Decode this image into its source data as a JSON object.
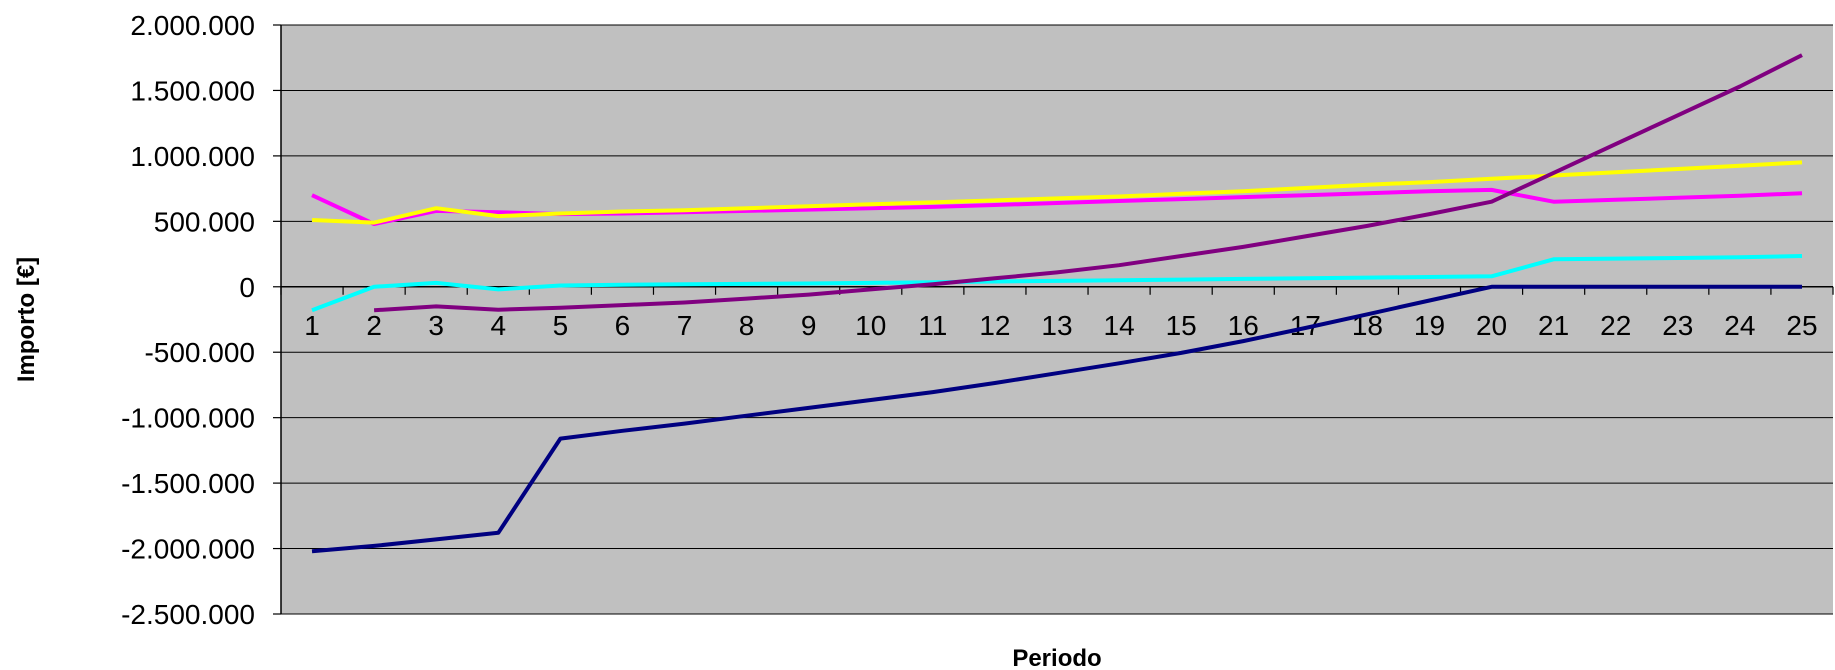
{
  "chart_data": {
    "type": "line",
    "xlabel": "Periodo",
    "ylabel": "Importo [€]",
    "x": [
      1,
      2,
      3,
      4,
      5,
      6,
      7,
      8,
      9,
      10,
      11,
      12,
      13,
      14,
      15,
      16,
      17,
      18,
      19,
      20,
      21,
      22,
      23,
      24,
      25
    ],
    "ylim": [
      -2500000,
      2000000
    ],
    "yticks": [
      2000000,
      1500000,
      1000000,
      500000,
      0,
      -500000,
      -1000000,
      -1500000,
      -2000000,
      -2500000
    ],
    "ytick_labels": [
      "2.000.000",
      "1.500.000",
      "1.000.000",
      "500.000",
      "0",
      "-500.000",
      "-1.000.000",
      "-1.500.000",
      "-2.000.000",
      "-2.500.000"
    ],
    "grid": true,
    "plot_background": "#c0c0c0",
    "series": [
      {
        "color": "#000080",
        "values": [
          -2020000,
          -1980000,
          -1930000,
          -1880000,
          -1160000,
          -1100000,
          -1045000,
          -985000,
          -925000,
          -865000,
          -805000,
          -735000,
          -660000,
          -585000,
          -505000,
          -415000,
          -315000,
          -210000,
          -105000,
          0,
          0,
          0,
          0,
          0,
          0
        ]
      },
      {
        "color": "#ff00ff",
        "values": [
          700000,
          480000,
          580000,
          570000,
          555000,
          560000,
          570000,
          580000,
          590000,
          600000,
          610000,
          625000,
          640000,
          655000,
          670000,
          685000,
          700000,
          715000,
          730000,
          740000,
          650000,
          665000,
          680000,
          695000,
          715000
        ]
      },
      {
        "color": "#ffff00",
        "values": [
          510000,
          490000,
          600000,
          540000,
          560000,
          575000,
          585000,
          600000,
          615000,
          630000,
          645000,
          660000,
          675000,
          690000,
          710000,
          730000,
          755000,
          780000,
          800000,
          825000,
          850000,
          875000,
          900000,
          925000,
          950000
        ]
      },
      {
        "color": "#00ffff",
        "values": [
          -180000,
          0,
          30000,
          -20000,
          10000,
          15000,
          20000,
          22000,
          25000,
          30000,
          35000,
          40000,
          45000,
          50000,
          55000,
          60000,
          65000,
          70000,
          75000,
          80000,
          210000,
          215000,
          220000,
          225000,
          235000
        ]
      },
      {
        "color": "#800080",
        "values": [
          null,
          -180000,
          -150000,
          -175000,
          -160000,
          -140000,
          -120000,
          -90000,
          -60000,
          -20000,
          20000,
          65000,
          110000,
          165000,
          235000,
          305000,
          385000,
          465000,
          555000,
          650000,
          870000,
          1090000,
          1310000,
          1530000,
          1770000
        ]
      }
    ]
  }
}
